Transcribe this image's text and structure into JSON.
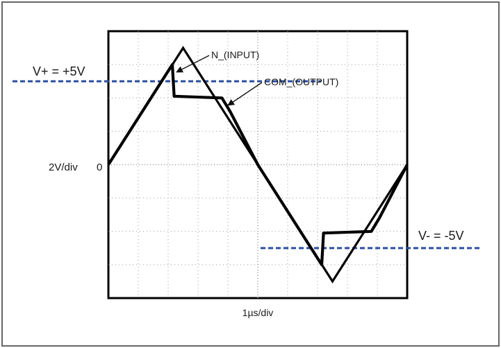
{
  "chart_data": {
    "type": "line",
    "title": "",
    "xlabel": "1µs/div",
    "ylabel": "2V/div",
    "y_zero_label": "0",
    "grid": true,
    "divisions": {
      "x": 10,
      "y": 8
    },
    "xlim": [
      0,
      10
    ],
    "ylim": [
      -8,
      8
    ],
    "series": [
      {
        "name": "N_(INPUT)",
        "points": [
          [
            0,
            0
          ],
          [
            2.5,
            7
          ],
          [
            7.5,
            -7
          ],
          [
            10,
            0
          ]
        ]
      },
      {
        "name": "COM_(OUTPUT)",
        "points": [
          [
            0,
            0
          ],
          [
            2.14,
            6
          ],
          [
            2.2,
            4.1
          ],
          [
            3.8,
            4
          ],
          [
            4.07,
            3.2
          ],
          [
            5,
            0
          ],
          [
            7.14,
            -6.0
          ],
          [
            7.2,
            -4.1
          ],
          [
            8.8,
            -4
          ],
          [
            9.07,
            -3.2
          ],
          [
            10,
            0
          ]
        ]
      }
    ],
    "reference_lines": [
      {
        "label": "V+ = +5V",
        "value": 5,
        "color": "#2b4fa0"
      },
      {
        "label": "V- = -5V",
        "value": -5,
        "color": "#2b4fa0"
      }
    ],
    "annotations": [
      {
        "text": "N_(INPUT)"
      },
      {
        "text": "COM_(OUTPUT)"
      }
    ]
  }
}
